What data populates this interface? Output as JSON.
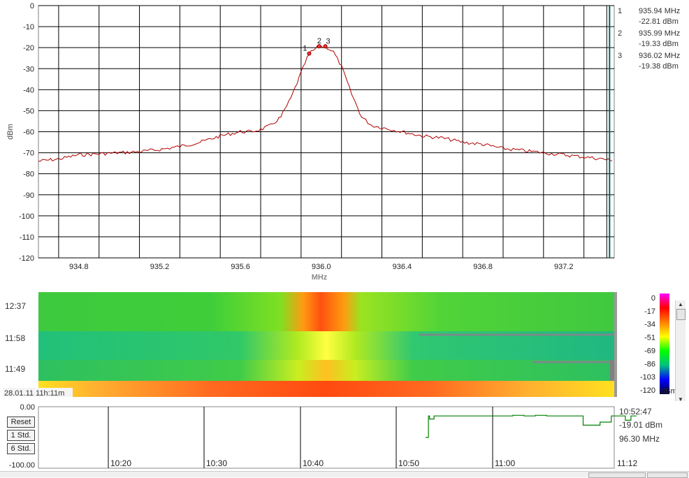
{
  "chart_data": [
    {
      "type": "line",
      "name_hint": "spectrum",
      "xlabel": "MHz",
      "ylabel": "dBm",
      "xlim": [
        934.6,
        937.45
      ],
      "ylim": [
        -120,
        0
      ],
      "xticks": [
        "934.8",
        "935.2",
        "935.6",
        "936.0",
        "936.4",
        "936.8",
        "937.2"
      ],
      "xtick_values": [
        934.8,
        935.2,
        935.6,
        936.0,
        936.4,
        936.8,
        937.2
      ],
      "yticks": [
        "0",
        "-10",
        "-20",
        "-30",
        "-40",
        "-50",
        "-60",
        "-70",
        "-80",
        "-90",
        "-100",
        "-110",
        "-120"
      ],
      "grid": true,
      "series_color": "#b00000",
      "x": [
        934.6,
        934.7,
        934.8,
        934.9,
        935.0,
        935.1,
        935.2,
        935.3,
        935.4,
        935.5,
        935.6,
        935.65,
        935.7,
        935.75,
        935.8,
        935.85,
        935.9,
        935.93,
        935.95,
        935.98,
        936.0,
        936.03,
        936.06,
        936.1,
        936.15,
        936.2,
        936.25,
        936.3,
        936.4,
        936.5,
        936.6,
        936.7,
        936.8,
        936.9,
        937.0,
        937.1,
        937.2,
        937.3,
        937.4,
        937.44
      ],
      "y": [
        -74,
        -73,
        -71,
        -70.5,
        -70,
        -69.5,
        -68.5,
        -67,
        -65,
        -62,
        -60,
        -60,
        -59,
        -57,
        -53,
        -44,
        -32,
        -25,
        -22,
        -20,
        -19.5,
        -20,
        -22,
        -29,
        -42,
        -53,
        -57,
        -58,
        -60,
        -62,
        -63,
        -65,
        -66,
        -68,
        -69,
        -70,
        -71,
        -72,
        -73,
        -74
      ],
      "markers": [
        {
          "label": "1",
          "x": 935.94,
          "y": -22.81
        },
        {
          "label": "2",
          "x": 935.99,
          "y": -19.33
        },
        {
          "label": "3",
          "x": 936.02,
          "y": -19.38
        }
      ],
      "vline_x": 937.42,
      "vline_color": "#006060"
    },
    {
      "type": "heatmap",
      "name_hint": "waterfall",
      "row_labels": [
        "12:37",
        "11:58",
        "11:49"
      ],
      "footer_label": "28.01.11 11h:11m",
      "colorbar_ticks": [
        "0",
        "-17",
        "-34",
        "-51",
        "-69",
        "-86",
        "-103",
        "-120"
      ],
      "colorbar_unit": "dBm",
      "colorbar_colors": [
        "#ff00ff",
        "#ff0000",
        "#ff8000",
        "#ffff00",
        "#00ff00",
        "#00c080",
        "#0000ff",
        "#000040"
      ]
    },
    {
      "type": "line",
      "name_hint": "time-history",
      "ytop_label": "0.00",
      "ybottom_label": "-100.00",
      "ylim": [
        -100,
        0
      ],
      "xticks": [
        "10:20",
        "10:30",
        "10:40",
        "10:50",
        "11:00",
        "11:12"
      ],
      "series_color": "#008000",
      "x": [
        0.0,
        0.62,
        0.625,
        0.63,
        0.632,
        0.64,
        0.75,
        0.78,
        0.8,
        0.82,
        0.84,
        0.86,
        0.9,
        0.905,
        0.93,
        0.935,
        0.95,
        0.955,
        0.97,
        0.98,
        0.99,
        1.0
      ],
      "y": [
        null,
        null,
        -50,
        -15,
        -20,
        -15,
        -15,
        -14,
        -15,
        -14,
        -15,
        -15,
        -15,
        -30,
        -30,
        -25,
        -25,
        -15,
        -15,
        -22,
        -15,
        -15
      ]
    }
  ],
  "markers_readout": [
    {
      "index": "1",
      "freq": "935.94 MHz",
      "level": "-22.81 dBm"
    },
    {
      "index": "2",
      "freq": "935.99 MHz",
      "level": "-19.33 dBm"
    },
    {
      "index": "3",
      "freq": "936.02 MHz",
      "level": "-19.38 dBm"
    }
  ],
  "time_readout": {
    "time": "10:52:47",
    "level": "-19.01 dBm",
    "freq": "96.30 MHz"
  },
  "buttons": {
    "reset": "Reset",
    "std1": "1 Std.",
    "std6": "6 Std."
  }
}
